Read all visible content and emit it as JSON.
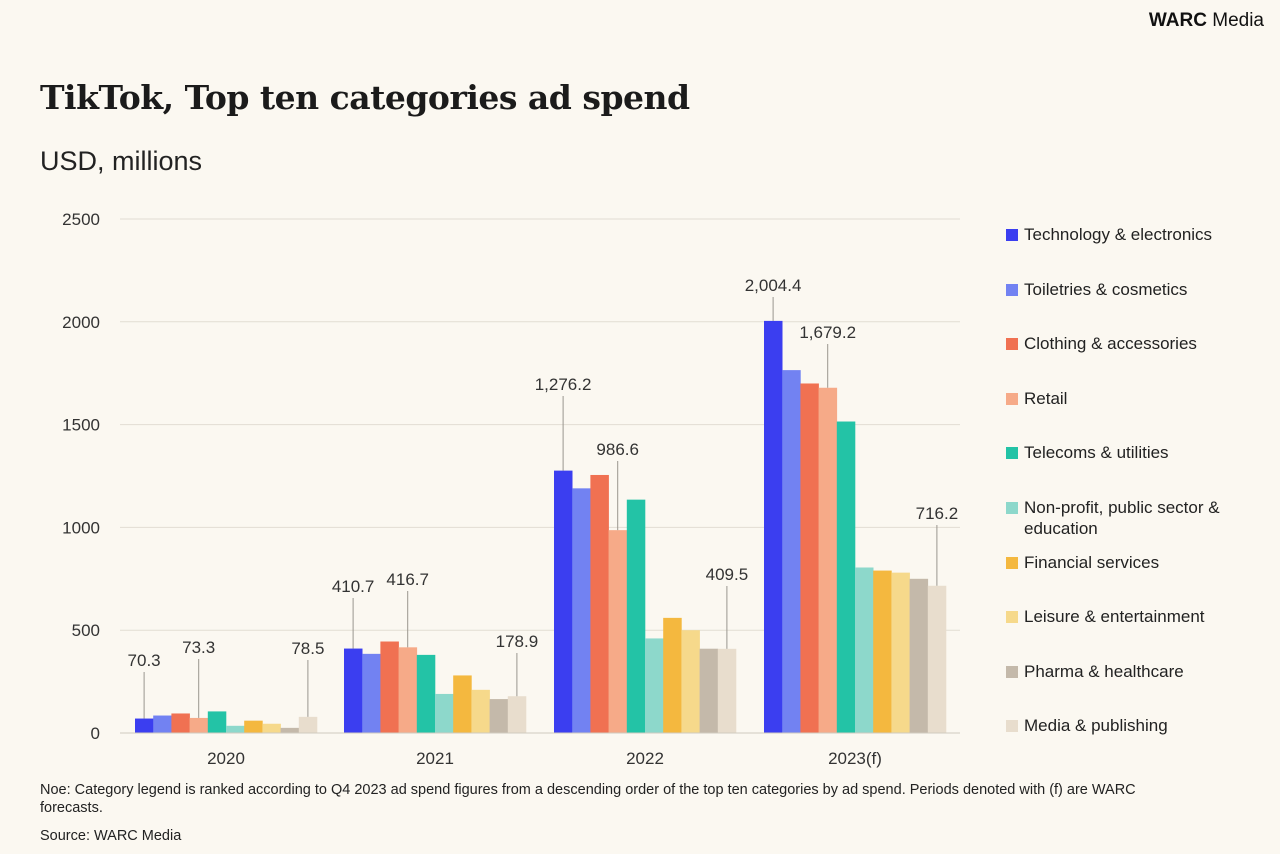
{
  "brand": {
    "bold": "WARC",
    "rest": "Media"
  },
  "chart_data": {
    "type": "bar",
    "title": "TikTok, Top ten categories ad spend",
    "subtitle": "USD, millions",
    "categories": [
      "2020",
      "2021",
      "2022",
      "2023(f)"
    ],
    "ylim": [
      0,
      2500
    ],
    "yticks": [
      "0",
      "500",
      "1000",
      "1500",
      "2000",
      "2500"
    ],
    "grid": true,
    "legend_placement": "right",
    "series": [
      {
        "name": "Technology & electronics",
        "color": "#3b3ef0",
        "values": [
          70.3,
          410.7,
          1276.2,
          2004.4
        ],
        "labels": [
          "70.3",
          "410.7",
          "1,276.2",
          "2,004.4"
        ]
      },
      {
        "name": "Toiletries & cosmetics",
        "color": "#7282f2",
        "values": [
          85,
          385,
          1190,
          1765
        ]
      },
      {
        "name": "Clothing & accessories",
        "color": "#f07152",
        "values": [
          95,
          445,
          1255,
          1700
        ]
      },
      {
        "name": "Retail",
        "color": "#f6aa88",
        "values": [
          73.3,
          416.7,
          986.6,
          1679.2
        ],
        "labels": [
          "73.3",
          "416.7",
          "986.6",
          "1,679.2"
        ]
      },
      {
        "name": "Telecoms & utilities",
        "color": "#23c3a6",
        "values": [
          105,
          380,
          1135,
          1515
        ]
      },
      {
        "name": "Non-profit, public sector & education",
        "color": "#8dd8cb",
        "values": [
          35,
          190,
          460,
          805
        ]
      },
      {
        "name": "Financial services",
        "color": "#f4b83f",
        "values": [
          60,
          280,
          560,
          790
        ]
      },
      {
        "name": "Leisure & entertainment",
        "color": "#f6d98b",
        "values": [
          45,
          210,
          500,
          780
        ]
      },
      {
        "name": "Pharma & healthcare",
        "color": "#c4b9aa",
        "values": [
          25,
          165,
          410,
          750
        ]
      },
      {
        "name": "Media & publishing",
        "color": "#e8ddcd",
        "values": [
          78.5,
          178.9,
          409.5,
          716.2
        ],
        "labels": [
          "78.5",
          "178.9",
          "409.5",
          "716.2"
        ]
      }
    ]
  },
  "footer": {
    "note": "Noe: Category legend is ranked according to Q4 2023 ad spend figures from a descending order of the top ten categories by ad spend. Periods denoted with (f) are WARC forecasts.",
    "source": "Source: WARC Media"
  }
}
